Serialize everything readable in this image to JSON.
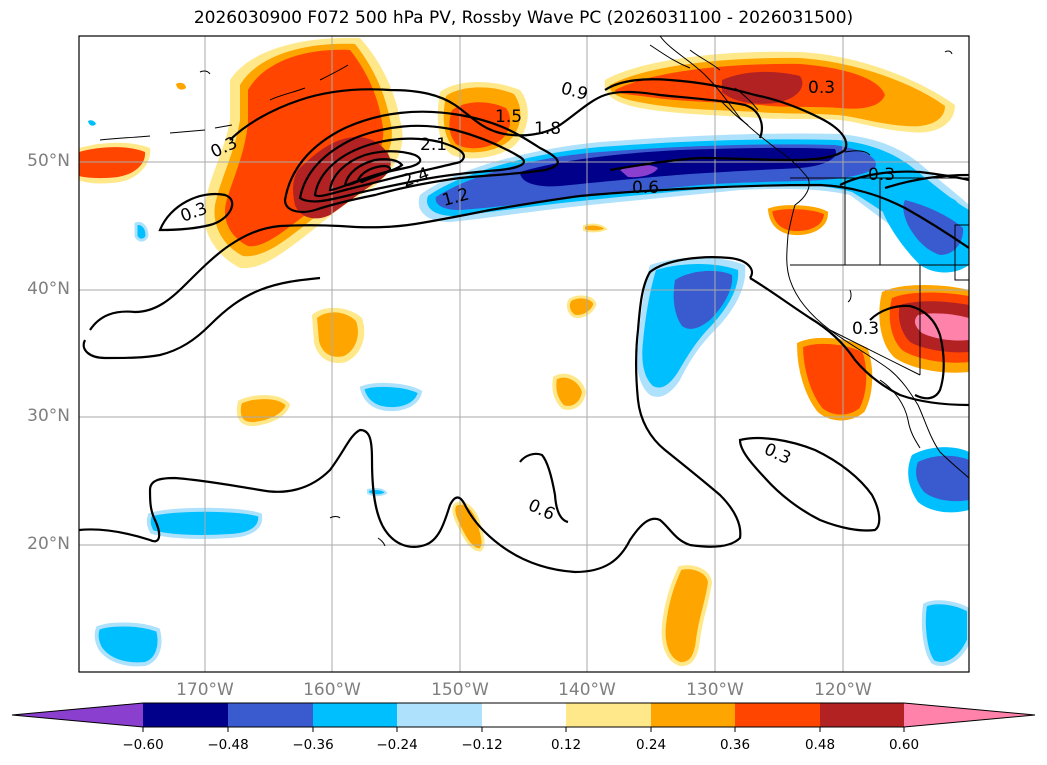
{
  "title": "2026030900 F072 500 hPa PV, Rossby Wave PC (2026031100 - 2026031500)",
  "colors": {
    "neg_0.60": "#8a3fcf",
    "neg_0.48": "#00008b",
    "neg_0.36": "#3a5bcf",
    "neg_0.24": "#00bfff",
    "neg_0.12": "#aee1fb",
    "neutral": "#ffffff",
    "pos_0.12": "#ffe88a",
    "pos_0.24": "#ffa500",
    "pos_0.36": "#ff4500",
    "pos_0.48": "#b22222",
    "pos_0.60": "#ff82ab"
  },
  "lat_labels": [
    "50°N",
    "40°N",
    "30°N",
    "20°N"
  ],
  "lon_labels": [
    "170°W",
    "160°W",
    "150°W",
    "140°W",
    "130°W",
    "120°W"
  ],
  "contour_labels": [
    "0.3",
    "0.3",
    "1.5",
    "1.8",
    "2.1",
    "2.4",
    "1.2",
    "0.9",
    "0.6",
    "0.3",
    "0.3",
    "0.3",
    "0.3",
    "0.6"
  ],
  "colorbar": {
    "ticks": [
      "−0.60",
      "−0.48",
      "−0.36",
      "−0.24",
      "−0.12",
      "0.12",
      "0.24",
      "0.36",
      "0.48",
      "0.60"
    ],
    "extend": "both"
  }
}
